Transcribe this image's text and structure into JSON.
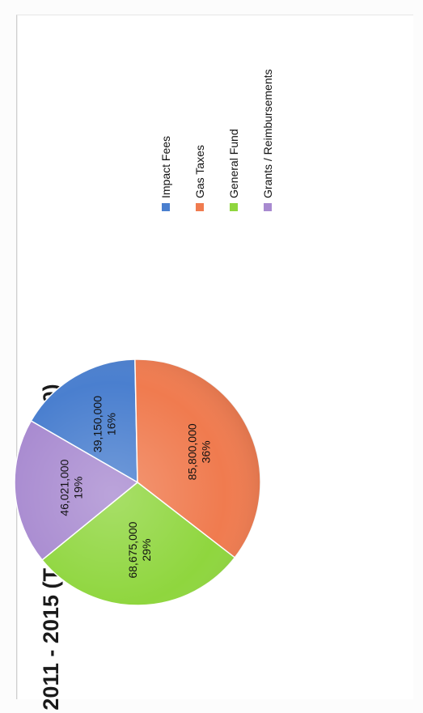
{
  "chart_data": {
    "type": "pie",
    "title": "2011 - 2015 (Total $239,646,000)",
    "orientation": "rotated 90 degrees counter-clockwise",
    "legend_position": "right",
    "slices": [
      {
        "name": "Impact Fees",
        "value": 39150000,
        "value_label": "39,150,000",
        "percent_label": "16%",
        "color": "#4a7fcf"
      },
      {
        "name": "Gas Taxes",
        "value": 85800000,
        "value_label": "85,800,000",
        "percent_label": "36%",
        "color": "#f07b4f"
      },
      {
        "name": "General Fund",
        "value": 68675000,
        "value_label": "68,675,000",
        "percent_label": "29%",
        "color": "#8fd63e"
      },
      {
        "name": "Grants / Reimbursements",
        "value": 46021000,
        "value_label": "46,021,000",
        "percent_label": "19%",
        "color": "#a88ad0"
      }
    ]
  }
}
